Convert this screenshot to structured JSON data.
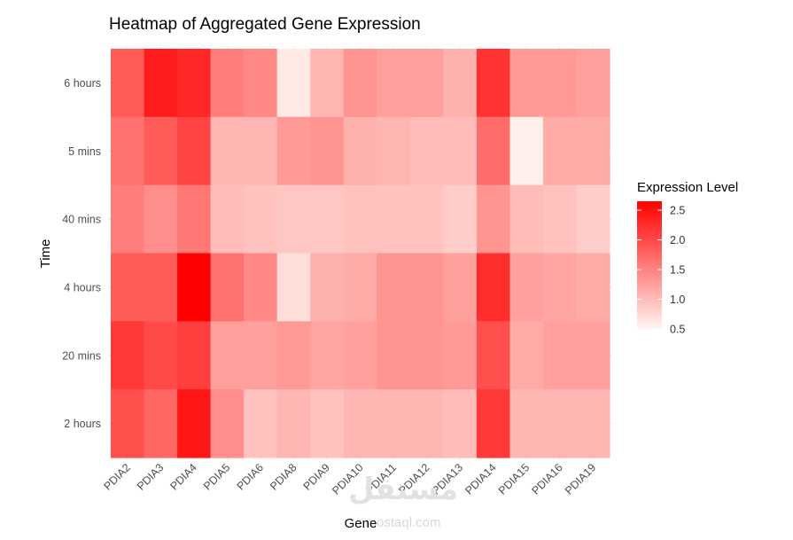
{
  "chart_data": {
    "type": "heatmap",
    "title": "Heatmap of Aggregated Gene Expression",
    "xlabel": "Gene",
    "ylabel": "Time",
    "x": [
      "PDIA2",
      "PDIA3",
      "PDIA4",
      "PDIA5",
      "PDIA6",
      "PDIA8",
      "PDIA9",
      "PDIA10",
      "PDIA11",
      "PDIA12",
      "PDIA13",
      "PDIA14",
      "PDIA15",
      "PDIA16",
      "PDIA19"
    ],
    "y": [
      "6 hours",
      "5 mins",
      "40 mins",
      "4 hours",
      "20 mins",
      "2 hours"
    ],
    "values": [
      [
        1.85,
        2.4,
        2.3,
        1.55,
        1.45,
        0.6,
        1.05,
        1.35,
        1.25,
        1.25,
        1.1,
        2.2,
        1.3,
        1.3,
        1.25
      ],
      [
        1.65,
        1.85,
        2.05,
        1.05,
        1.05,
        1.3,
        1.35,
        1.1,
        1.05,
        1.0,
        1.0,
        1.7,
        0.55,
        1.15,
        1.15
      ],
      [
        1.55,
        1.4,
        1.6,
        1.0,
        0.95,
        0.9,
        0.9,
        0.95,
        0.95,
        0.95,
        0.85,
        1.35,
        1.0,
        0.95,
        0.85
      ],
      [
        1.85,
        1.85,
        2.65,
        1.65,
        1.45,
        0.7,
        1.1,
        1.15,
        1.35,
        1.35,
        1.25,
        2.25,
        1.25,
        1.2,
        1.15
      ],
      [
        2.15,
        2.0,
        2.1,
        1.25,
        1.25,
        1.3,
        1.2,
        1.25,
        1.35,
        1.35,
        1.3,
        1.95,
        1.15,
        1.25,
        1.25
      ],
      [
        1.95,
        1.75,
        2.45,
        1.4,
        0.95,
        1.05,
        0.95,
        1.05,
        1.05,
        1.05,
        1.0,
        2.15,
        1.05,
        1.05,
        1.05
      ]
    ],
    "legend": {
      "title": "Expression Level",
      "ticks": [
        "0.5",
        "1.0",
        "1.5",
        "2.0",
        "2.5"
      ],
      "tick_values": [
        0.5,
        1.0,
        1.5,
        2.0,
        2.5
      ],
      "range": [
        0.5,
        2.65
      ],
      "position": "right"
    },
    "color_low": "#fff5f0",
    "color_high": "#ff0000",
    "grid": true
  },
  "watermark": {
    "arabic": "مستقل",
    "latin": "mostaql.com"
  }
}
